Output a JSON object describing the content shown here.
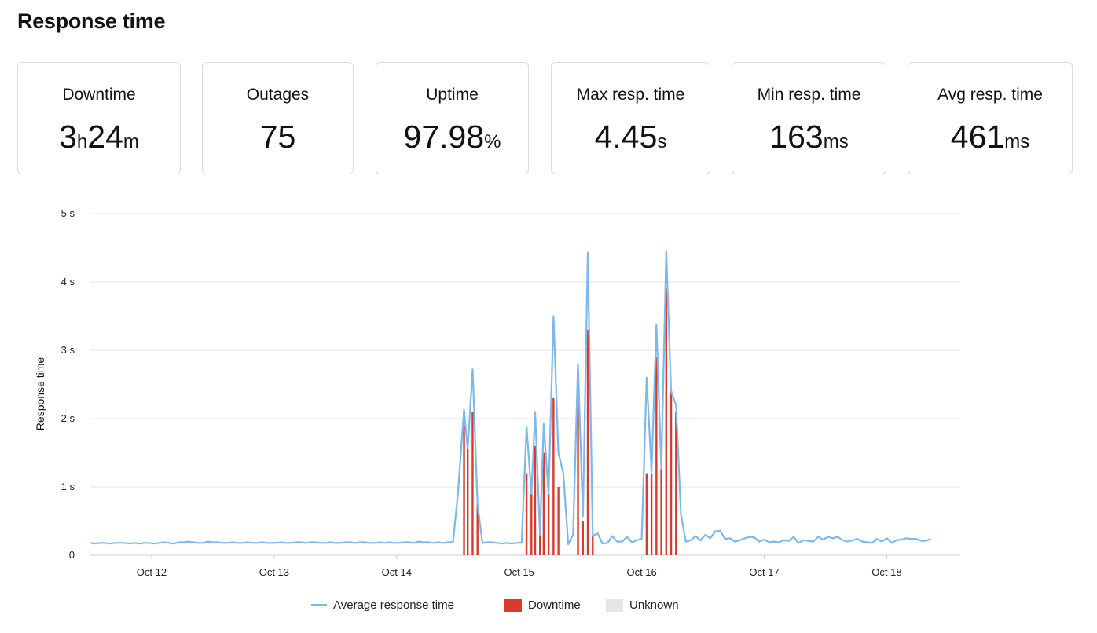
{
  "page": {
    "title": "Response time"
  },
  "stats": [
    {
      "label": "Downtime",
      "parts": [
        {
          "v": "3",
          "u": "h"
        },
        {
          "v": "24",
          "u": "m"
        }
      ]
    },
    {
      "label": "Outages",
      "parts": [
        {
          "v": "75",
          "u": ""
        }
      ]
    },
    {
      "label": "Uptime",
      "parts": [
        {
          "v": "97.98",
          "u": "%"
        }
      ]
    },
    {
      "label": "Max resp. time",
      "parts": [
        {
          "v": "4.45",
          "u": "s"
        }
      ]
    },
    {
      "label": "Min resp. time",
      "parts": [
        {
          "v": "163",
          "u": "ms"
        }
      ]
    },
    {
      "label": "Avg resp. time",
      "parts": [
        {
          "v": "461",
          "u": "ms"
        }
      ]
    }
  ],
  "chart_data": {
    "type": "line",
    "ylabel": "Response time",
    "xlabel": "",
    "ylim": [
      0,
      5
    ],
    "yticks": [
      {
        "value": 0,
        "label": "0"
      },
      {
        "value": 1,
        "label": "1 s"
      },
      {
        "value": 2,
        "label": "2 s"
      },
      {
        "value": 3,
        "label": "3 s"
      },
      {
        "value": 4,
        "label": "4 s"
      },
      {
        "value": 5,
        "label": "5 s"
      }
    ],
    "xlim": [
      11.5,
      18.6
    ],
    "xticks": [
      {
        "value": 12,
        "label": "Oct 12"
      },
      {
        "value": 13,
        "label": "Oct 13"
      },
      {
        "value": 14,
        "label": "Oct 14"
      },
      {
        "value": 15,
        "label": "Oct 15"
      },
      {
        "value": 16,
        "label": "Oct 16"
      },
      {
        "value": 17,
        "label": "Oct 17"
      },
      {
        "value": 18,
        "label": "Oct 18"
      }
    ],
    "grid": true,
    "legend_position": "bottom",
    "colors": {
      "response": "#7cb9ea",
      "downtime": "#d93a2e",
      "unknown": "#e6e6e6",
      "grid": "#e3e3e3"
    },
    "series": [
      {
        "name": "Average response time",
        "points": [
          [
            11.5,
            0.18
          ],
          [
            11.54,
            0.17
          ],
          [
            11.58,
            0.18
          ],
          [
            11.62,
            0.18
          ],
          [
            11.66,
            0.17
          ],
          [
            11.7,
            0.18
          ],
          [
            11.74,
            0.18
          ],
          [
            11.78,
            0.18
          ],
          [
            11.82,
            0.17
          ],
          [
            11.86,
            0.18
          ],
          [
            11.9,
            0.17
          ],
          [
            11.94,
            0.18
          ],
          [
            11.98,
            0.18
          ],
          [
            12.02,
            0.17
          ],
          [
            12.06,
            0.18
          ],
          [
            12.1,
            0.19
          ],
          [
            12.14,
            0.18
          ],
          [
            12.18,
            0.17
          ],
          [
            12.22,
            0.19
          ],
          [
            12.26,
            0.19
          ],
          [
            12.3,
            0.2
          ],
          [
            12.34,
            0.19
          ],
          [
            12.38,
            0.18
          ],
          [
            12.42,
            0.18
          ],
          [
            12.46,
            0.2
          ],
          [
            12.5,
            0.19
          ],
          [
            12.54,
            0.19
          ],
          [
            12.58,
            0.18
          ],
          [
            12.62,
            0.18
          ],
          [
            12.66,
            0.19
          ],
          [
            12.7,
            0.18
          ],
          [
            12.74,
            0.18
          ],
          [
            12.78,
            0.19
          ],
          [
            12.82,
            0.18
          ],
          [
            12.86,
            0.18
          ],
          [
            12.9,
            0.19
          ],
          [
            12.94,
            0.18
          ],
          [
            12.98,
            0.18
          ],
          [
            13.02,
            0.18
          ],
          [
            13.06,
            0.19
          ],
          [
            13.1,
            0.18
          ],
          [
            13.14,
            0.18
          ],
          [
            13.18,
            0.19
          ],
          [
            13.22,
            0.19
          ],
          [
            13.26,
            0.18
          ],
          [
            13.3,
            0.19
          ],
          [
            13.34,
            0.19
          ],
          [
            13.38,
            0.18
          ],
          [
            13.42,
            0.18
          ],
          [
            13.46,
            0.19
          ],
          [
            13.5,
            0.18
          ],
          [
            13.54,
            0.18
          ],
          [
            13.58,
            0.19
          ],
          [
            13.62,
            0.19
          ],
          [
            13.66,
            0.18
          ],
          [
            13.7,
            0.19
          ],
          [
            13.74,
            0.19
          ],
          [
            13.78,
            0.18
          ],
          [
            13.82,
            0.18
          ],
          [
            13.86,
            0.19
          ],
          [
            13.9,
            0.18
          ],
          [
            13.94,
            0.19
          ],
          [
            13.98,
            0.18
          ],
          [
            14.02,
            0.18
          ],
          [
            14.06,
            0.19
          ],
          [
            14.1,
            0.19
          ],
          [
            14.14,
            0.18
          ],
          [
            14.18,
            0.2
          ],
          [
            14.22,
            0.19
          ],
          [
            14.26,
            0.19
          ],
          [
            14.3,
            0.18
          ],
          [
            14.34,
            0.19
          ],
          [
            14.38,
            0.18
          ],
          [
            14.42,
            0.19
          ],
          [
            14.46,
            0.19
          ],
          [
            14.5,
            0.9
          ],
          [
            14.55,
            2.13
          ],
          [
            14.58,
            1.56
          ],
          [
            14.62,
            2.72
          ],
          [
            14.66,
            0.75
          ],
          [
            14.7,
            0.18
          ],
          [
            14.74,
            0.19
          ],
          [
            14.78,
            0.19
          ],
          [
            14.82,
            0.18
          ],
          [
            14.86,
            0.17
          ],
          [
            14.9,
            0.18
          ],
          [
            14.94,
            0.17
          ],
          [
            14.98,
            0.18
          ],
          [
            15.02,
            0.18
          ],
          [
            15.06,
            1.88
          ],
          [
            15.1,
            0.9
          ],
          [
            15.13,
            2.1
          ],
          [
            15.17,
            0.3
          ],
          [
            15.2,
            1.92
          ],
          [
            15.24,
            0.9
          ],
          [
            15.28,
            3.5
          ],
          [
            15.32,
            1.5
          ],
          [
            15.36,
            1.2
          ],
          [
            15.4,
            0.16
          ],
          [
            15.44,
            0.3
          ],
          [
            15.48,
            2.8
          ],
          [
            15.52,
            0.57
          ],
          [
            15.56,
            4.43
          ],
          [
            15.6,
            0.28
          ],
          [
            15.64,
            0.32
          ],
          [
            15.68,
            0.17
          ],
          [
            15.72,
            0.18
          ],
          [
            15.76,
            0.28
          ],
          [
            15.8,
            0.2
          ],
          [
            15.84,
            0.2
          ],
          [
            15.88,
            0.27
          ],
          [
            15.92,
            0.19
          ],
          [
            15.96,
            0.22
          ],
          [
            16.0,
            0.24
          ],
          [
            16.04,
            2.6
          ],
          [
            16.08,
            1.22
          ],
          [
            16.12,
            3.37
          ],
          [
            16.16,
            1.27
          ],
          [
            16.2,
            4.45
          ],
          [
            16.24,
            2.4
          ],
          [
            16.28,
            2.2
          ],
          [
            16.32,
            0.6
          ],
          [
            16.36,
            0.2
          ],
          [
            16.4,
            0.22
          ],
          [
            16.44,
            0.28
          ],
          [
            16.48,
            0.22
          ],
          [
            16.52,
            0.3
          ],
          [
            16.56,
            0.25
          ],
          [
            16.6,
            0.35
          ],
          [
            16.64,
            0.36
          ],
          [
            16.68,
            0.24
          ],
          [
            16.72,
            0.25
          ],
          [
            16.76,
            0.2
          ],
          [
            16.8,
            0.22
          ],
          [
            16.84,
            0.25
          ],
          [
            16.88,
            0.27
          ],
          [
            16.92,
            0.26
          ],
          [
            16.96,
            0.2
          ],
          [
            17.0,
            0.23
          ],
          [
            17.04,
            0.19
          ],
          [
            17.08,
            0.2
          ],
          [
            17.12,
            0.19
          ],
          [
            17.16,
            0.22
          ],
          [
            17.2,
            0.21
          ],
          [
            17.24,
            0.27
          ],
          [
            17.28,
            0.18
          ],
          [
            17.32,
            0.22
          ],
          [
            17.36,
            0.21
          ],
          [
            17.4,
            0.2
          ],
          [
            17.44,
            0.27
          ],
          [
            17.48,
            0.23
          ],
          [
            17.52,
            0.27
          ],
          [
            17.56,
            0.25
          ],
          [
            17.6,
            0.27
          ],
          [
            17.64,
            0.22
          ],
          [
            17.68,
            0.2
          ],
          [
            17.72,
            0.22
          ],
          [
            17.76,
            0.24
          ],
          [
            17.8,
            0.2
          ],
          [
            17.84,
            0.19
          ],
          [
            17.88,
            0.18
          ],
          [
            17.92,
            0.24
          ],
          [
            17.96,
            0.2
          ],
          [
            18.0,
            0.25
          ],
          [
            18.04,
            0.18
          ],
          [
            18.08,
            0.22
          ],
          [
            18.12,
            0.23
          ],
          [
            18.16,
            0.25
          ],
          [
            18.2,
            0.24
          ],
          [
            18.24,
            0.24
          ],
          [
            18.28,
            0.21
          ],
          [
            18.32,
            0.21
          ],
          [
            18.36,
            0.24
          ]
        ]
      },
      {
        "name": "Downtime",
        "bars": [
          [
            14.55,
            1.9
          ],
          [
            14.58,
            1.56
          ],
          [
            14.62,
            2.1
          ],
          [
            14.66,
            0.75
          ],
          [
            15.06,
            1.2
          ],
          [
            15.1,
            0.9
          ],
          [
            15.13,
            1.6
          ],
          [
            15.17,
            0.3
          ],
          [
            15.2,
            1.5
          ],
          [
            15.24,
            0.9
          ],
          [
            15.28,
            2.3
          ],
          [
            15.32,
            1.0
          ],
          [
            15.48,
            2.2
          ],
          [
            15.52,
            0.5
          ],
          [
            15.56,
            3.3
          ],
          [
            15.6,
            0.28
          ],
          [
            16.04,
            1.2
          ],
          [
            16.08,
            1.2
          ],
          [
            16.12,
            2.9
          ],
          [
            16.16,
            1.27
          ],
          [
            16.2,
            3.9
          ],
          [
            16.24,
            2.4
          ],
          [
            16.28,
            2.1
          ]
        ]
      },
      {
        "name": "Unknown",
        "bars": []
      }
    ]
  }
}
